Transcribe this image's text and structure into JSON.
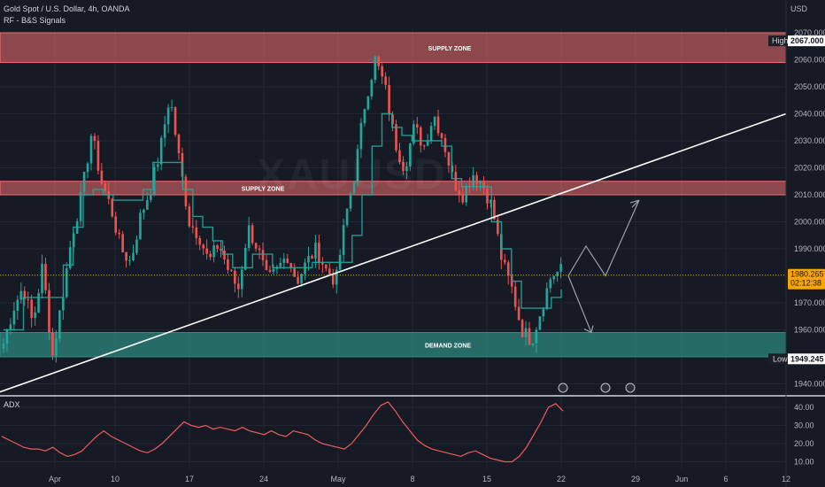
{
  "header": {
    "symbol": "Gold Spot / U.S. Dollar, 4h, OANDA",
    "indicator": "RF - B&S Signals",
    "currency": "USD",
    "watermark": "XAUUSD"
  },
  "colors": {
    "background": "#161a25",
    "bull": "#26a69a",
    "bear": "#ef5350",
    "supply_zone": "#f06f6f",
    "demand_zone": "#2f8f83",
    "filter_up": "#26a69a",
    "filter_down": "#b0334a",
    "trendline": "#ffffff",
    "adx_line": "#f05a5a",
    "price_tag": "#f7a600",
    "projection": "#9aa0a8"
  },
  "chart_data": [
    {
      "type": "candlestick",
      "title": "Gold Spot / U.S. Dollar, 4h, OANDA",
      "ylim": [
        1936,
        2075
      ],
      "y_ticks": [
        "2070.000",
        "2060.000",
        "2050.000",
        "2040.000",
        "2030.000",
        "2020.000",
        "2010.000",
        "2000.000",
        "1990.000",
        "1980.000",
        "1970.000",
        "1960.000",
        "1950.000",
        "1940.000"
      ],
      "x_ticks": [
        "Apr",
        "10",
        "17",
        "24",
        "May",
        "8",
        "15",
        "22",
        "29",
        "Jun",
        "6",
        "12"
      ],
      "close_path": [
        1955,
        1968,
        1976,
        1962,
        1984,
        1950,
        1972,
        1995,
        2010,
        2033,
        2015,
        2005,
        1990,
        1985,
        2002,
        2012,
        2026,
        2047,
        2022,
        2000,
        1995,
        1985,
        1992,
        1982,
        1975,
        1998,
        1990,
        1978,
        1982,
        1988,
        1978,
        1985,
        1990,
        1982,
        1978,
        2002,
        2020,
        2045,
        2060,
        2050,
        2030,
        2020,
        2035,
        2028,
        2040,
        2030,
        2015,
        2010,
        2018,
        2014,
        2005,
        1985,
        1975,
        1960,
        1956,
        1968,
        1980,
        1982
      ],
      "price_line": {
        "value": 1980.265,
        "label": "1980.265",
        "countdown": "02:12:38"
      },
      "high": {
        "label": "High",
        "value": "2067.000"
      },
      "low": {
        "label": "Low",
        "value": "1949.245"
      },
      "zones": [
        {
          "label": "SUPPLY ZONE",
          "from": 2059,
          "to": 2070
        },
        {
          "label": "SUPPLY ZONE",
          "from": 2010,
          "to": 2015
        },
        {
          "label": "DEMAND ZONE",
          "from": 1950,
          "to": 1959
        }
      ],
      "trendline": {
        "from": 1937,
        "to": 2040
      },
      "range_filter": [
        1960,
        1960,
        1972,
        1972,
        1972,
        1972,
        1984,
        1998,
        2010,
        2012,
        2010,
        2008,
        2008,
        2008,
        2012,
        2022,
        2022,
        2022,
        2012,
        2002,
        1998,
        1993,
        1988,
        1983,
        1983,
        1988,
        1988,
        1983,
        1983,
        1983,
        1983,
        1985,
        1985,
        1985,
        1985,
        1995,
        2010,
        2028,
        2040,
        2035,
        2032,
        2030,
        2030,
        2030,
        2028,
        2016,
        2013,
        2013,
        2013,
        2000,
        1990,
        1978,
        1968,
        1968,
        1968,
        1972,
        1975
      ],
      "projection": [
        1980,
        1991,
        1980,
        2008
      ],
      "projection_down": [
        1980,
        1959
      ]
    },
    {
      "type": "line",
      "title": "ADX",
      "ylim": [
        5,
        45
      ],
      "y_ticks": [
        "40.00",
        "30.00",
        "20.00",
        "10.00"
      ],
      "values": [
        24,
        22,
        20,
        18,
        17,
        17,
        16,
        18,
        15,
        13,
        14,
        16,
        20,
        24,
        27,
        24,
        22,
        20,
        18,
        16,
        15,
        17,
        20,
        24,
        28,
        32,
        30,
        29,
        30,
        28,
        29,
        28,
        27,
        29,
        27,
        26,
        25,
        27,
        25,
        24,
        27,
        26,
        25,
        22,
        20,
        19,
        18,
        17,
        20,
        25,
        30,
        36,
        41,
        43,
        38,
        32,
        27,
        22,
        19,
        17,
        16,
        15,
        14,
        13,
        15,
        16,
        14,
        12,
        11,
        10,
        10,
        13,
        18,
        25,
        32,
        40,
        42,
        38
      ]
    }
  ]
}
